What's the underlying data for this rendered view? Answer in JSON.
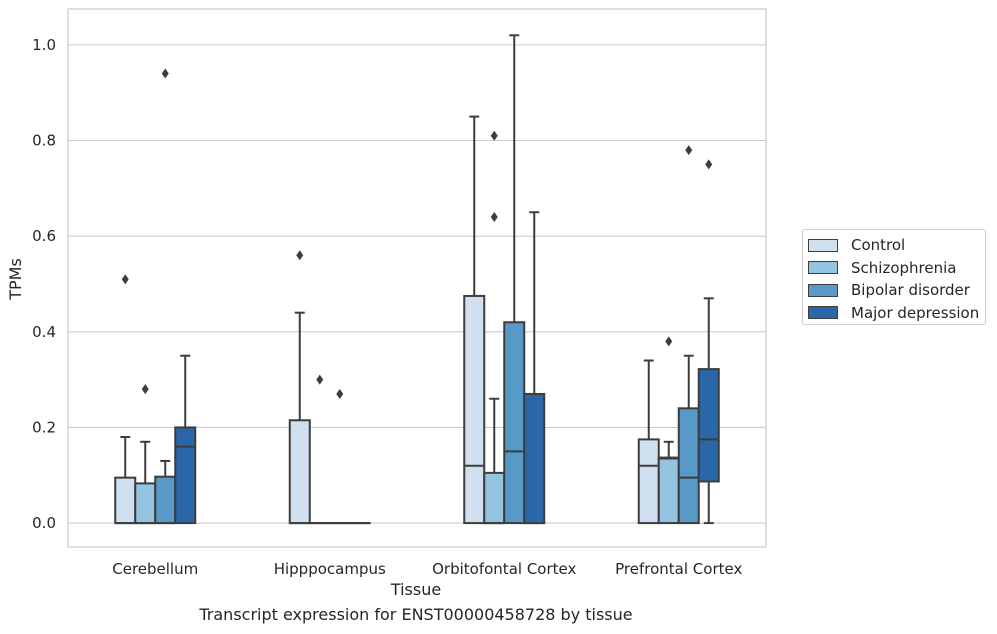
{
  "chart_data": {
    "type": "boxplot",
    "caption": "Transcript expression for ENST00000458728 by tissue",
    "xlabel": "Tissue",
    "ylabel": "TPMs",
    "ylim": [
      -0.05,
      1.075
    ],
    "yticks": [
      0.0,
      0.2,
      0.4,
      0.6,
      0.8,
      1.0
    ],
    "ytick_labels": [
      "0.0",
      "0.2",
      "0.4",
      "0.6",
      "0.8",
      "1.0"
    ],
    "grid": "horizontal",
    "legend_position": "right",
    "categories": [
      "Cerebellum",
      "Hipppocampus",
      "Orbitofontal Cortex",
      "Prefrontal Cortex"
    ],
    "series": [
      {
        "name": "Control",
        "color": "#d0e0f0",
        "boxes": [
          {
            "whislo": 0.0,
            "q1": 0.0,
            "med": 0.0,
            "q3": 0.095,
            "whishi": 0.18,
            "fliers": [
              0.51
            ]
          },
          {
            "whislo": 0.0,
            "q1": 0.0,
            "med": 0.0,
            "q3": 0.215,
            "whishi": 0.44,
            "fliers": [
              0.56
            ]
          },
          {
            "whislo": 0.0,
            "q1": 0.0,
            "med": 0.12,
            "q3": 0.475,
            "whishi": 0.85,
            "fliers": []
          },
          {
            "whislo": 0.0,
            "q1": 0.0,
            "med": 0.12,
            "q3": 0.175,
            "whishi": 0.34,
            "fliers": []
          }
        ]
      },
      {
        "name": "Schizophrenia",
        "color": "#94c4df",
        "boxes": [
          {
            "whislo": 0.0,
            "q1": 0.0,
            "med": 0.0,
            "q3": 0.083,
            "whishi": 0.17,
            "fliers": [
              0.28
            ]
          },
          {
            "whislo": 0.0,
            "q1": 0.0,
            "med": 0.0,
            "q3": 0.0,
            "whishi": 0.0,
            "fliers": [
              0.3
            ]
          },
          {
            "whislo": 0.0,
            "q1": 0.0,
            "med": 0.0,
            "q3": 0.105,
            "whishi": 0.26,
            "fliers": [
              0.64,
              0.81
            ]
          },
          {
            "whislo": 0.0,
            "q1": 0.0,
            "med": 0.135,
            "q3": 0.137,
            "whishi": 0.17,
            "fliers": [
              0.38
            ]
          }
        ]
      },
      {
        "name": "Bipolar disorder",
        "color": "#5799c7",
        "boxes": [
          {
            "whislo": 0.0,
            "q1": 0.0,
            "med": 0.0,
            "q3": 0.097,
            "whishi": 0.13,
            "fliers": [
              0.94
            ]
          },
          {
            "whislo": 0.0,
            "q1": 0.0,
            "med": 0.0,
            "q3": 0.0,
            "whishi": 0.0,
            "fliers": [
              0.27
            ]
          },
          {
            "whislo": 0.0,
            "q1": 0.0,
            "med": 0.15,
            "q3": 0.42,
            "whishi": 1.02,
            "fliers": []
          },
          {
            "whislo": 0.0,
            "q1": 0.0,
            "med": 0.095,
            "q3": 0.24,
            "whishi": 0.35,
            "fliers": [
              0.78
            ]
          }
        ]
      },
      {
        "name": "Major depression",
        "color": "#2a67a8",
        "boxes": [
          {
            "whislo": 0.0,
            "q1": 0.0,
            "med": 0.16,
            "q3": 0.2,
            "whishi": 0.35,
            "fliers": []
          },
          {
            "whislo": 0.0,
            "q1": 0.0,
            "med": 0.0,
            "q3": 0.0,
            "whishi": 0.0,
            "fliers": []
          },
          {
            "whislo": 0.0,
            "q1": 0.0,
            "med": 0.0,
            "q3": 0.27,
            "whishi": 0.65,
            "fliers": []
          },
          {
            "whislo": 0.0,
            "q1": 0.087,
            "med": 0.175,
            "q3": 0.322,
            "whishi": 0.47,
            "fliers": [
              0.75
            ]
          }
        ]
      }
    ]
  }
}
